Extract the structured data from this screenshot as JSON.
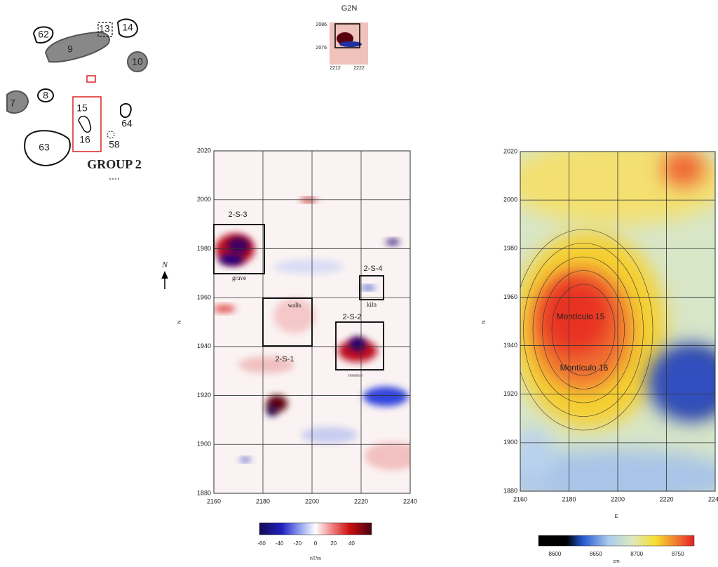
{
  "site_plan": {
    "labels": [
      "62",
      "13",
      "14",
      "9",
      "10",
      "7",
      "8",
      "15",
      "16",
      "64",
      "63",
      "58"
    ],
    "title": "GROUP 2"
  },
  "inset": {
    "title": "G2N",
    "yticks": [
      2086,
      2076
    ],
    "xticks": [
      2212,
      2222
    ]
  },
  "magnetic_map": {
    "xlim": [
      2160,
      2240
    ],
    "ylim": [
      1880,
      2020
    ],
    "xticks": [
      2160,
      2180,
      2200,
      2220,
      2240
    ],
    "yticks": [
      1880,
      1900,
      1920,
      1940,
      1960,
      1980,
      2000,
      2020
    ],
    "y_label": "N",
    "north_label": "N",
    "annotations": [
      "2-S-3",
      "grave",
      "2-S-4",
      "kiln",
      "walls",
      "2-S-2",
      "mosaico",
      "2-S-1"
    ],
    "colorbar": {
      "clim": [
        -60,
        60
      ],
      "ticks": [
        -60,
        -40,
        -20,
        0,
        20,
        40
      ],
      "unit": "nT/m"
    }
  },
  "topo_map": {
    "xlim": [
      2160,
      2240
    ],
    "ylim": [
      1880,
      2020
    ],
    "xticks": [
      2160,
      2180,
      2200,
      2220,
      2240
    ],
    "yticks": [
      1880,
      1900,
      1920,
      1940,
      1960,
      1980,
      2000,
      2020
    ],
    "x_label": "E",
    "y_label": "N",
    "annotations": [
      "Montículo 15",
      "Montículo 16"
    ],
    "colorbar": {
      "clim": [
        8580,
        8770
      ],
      "ticks": [
        8600,
        8650,
        8700,
        8750
      ],
      "unit": "cm"
    }
  }
}
